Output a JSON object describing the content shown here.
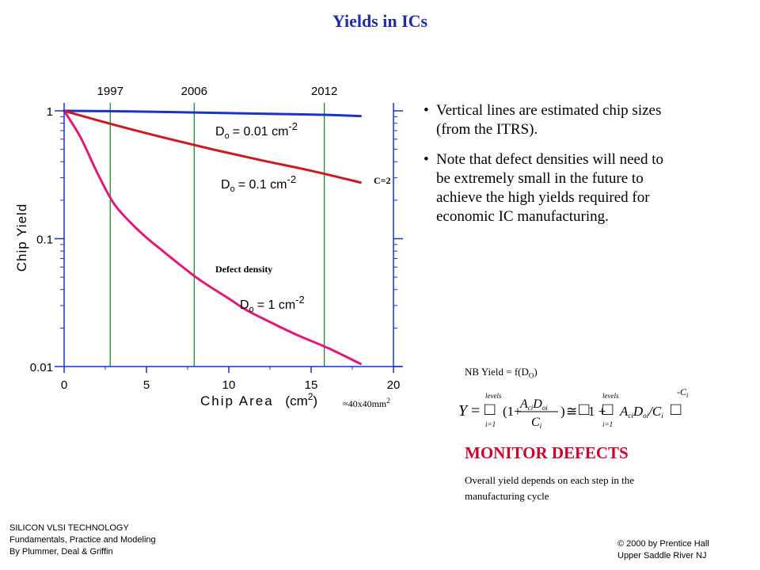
{
  "title": "Yields in ICs",
  "chart_data": {
    "type": "line",
    "ylabel": "Chip  Yield",
    "xlabel_main": "Chip Area",
    "xlabel_unit": "(cm",
    "xlabel_exp": "2",
    "xlabel_close": ")",
    "xlim": [
      0,
      20
    ],
    "ylim": [
      0.01,
      1
    ],
    "yscale": "log",
    "xticks": [
      0,
      5,
      10,
      15,
      20
    ],
    "yticks": [
      {
        "value": 1,
        "label": "1"
      },
      {
        "value": 0.1,
        "label": "0.1"
      },
      {
        "value": 0.01,
        "label": "0.01"
      }
    ],
    "vlines": [
      {
        "x": 2.8,
        "label": "1997"
      },
      {
        "x": 7.9,
        "label": "2006"
      },
      {
        "x": 15.8,
        "label": "2012"
      }
    ],
    "series": [
      {
        "color": "#1a33c8",
        "points": [
          [
            0,
            1
          ],
          [
            4,
            0.99
          ],
          [
            8,
            0.97
          ],
          [
            12,
            0.95
          ],
          [
            16,
            0.93
          ],
          [
            18,
            0.91
          ]
        ]
      },
      {
        "color": "#cc1a22",
        "points": [
          [
            0,
            1
          ],
          [
            3,
            0.78
          ],
          [
            6,
            0.62
          ],
          [
            9,
            0.5
          ],
          [
            12,
            0.41
          ],
          [
            15,
            0.34
          ],
          [
            18,
            0.275
          ]
        ]
      },
      {
        "color": "#e01a78",
        "points": [
          [
            0,
            1
          ],
          [
            1,
            0.62
          ],
          [
            2,
            0.33
          ],
          [
            3,
            0.19
          ],
          [
            4,
            0.135
          ],
          [
            5,
            0.102
          ],
          [
            6,
            0.08
          ],
          [
            7,
            0.063
          ],
          [
            8,
            0.05
          ],
          [
            9,
            0.041
          ],
          [
            10,
            0.034
          ],
          [
            11,
            0.028
          ],
          [
            12,
            0.024
          ],
          [
            14,
            0.018
          ],
          [
            16,
            0.014
          ],
          [
            18,
            0.0105
          ]
        ]
      }
    ],
    "annotations": {
      "d1": {
        "main": "D",
        "sub": "o",
        "rest": "= 0.01 cm",
        "sup": "-2"
      },
      "d2": {
        "main": "D",
        "sub": "o",
        "rest": "= 0.1 cm",
        "sup": "-2"
      },
      "d3": {
        "main": "D",
        "sub": "o",
        "rest": "= 1 cm",
        "sup": "-2"
      },
      "c": "C=2",
      "defect": "Defect density",
      "size": "≈40x40mm",
      "size_sup": "2"
    }
  },
  "bullets": [
    "Vertical lines are estimated chip sizes (from the ITRS).",
    "Note that defect densities will need to be extremely small in the future to achieve the high yields required for economic IC manufacturing."
  ],
  "bullet_symbol": "•",
  "nb": {
    "text": "NB Yield = f(D",
    "sub": "O",
    "close": ")"
  },
  "monitor": "MONITOR DEFECTS",
  "note": "Overall yield depends on each step in the manufacturing cycle",
  "footer_left": [
    "SILICON  VLSI TECHNOLOGY",
    "Fundamentals, Practice and Modeling",
    "By Plummer,  Deal & Griffin"
  ],
  "footer_right": [
    "© 2000 by Prentice Hall",
    "Upper Saddle River NJ"
  ],
  "equation": {
    "lhs": "Y",
    "eq": "=",
    "top": "levels",
    "bottom": "i=1",
    "open": "(1+",
    "num": "A",
    "num_sub1": "ci",
    "num_d": "D",
    "num_sub2": "oi",
    "den": "C",
    "den_sub": "i",
    "close": ")",
    "approx": "≅",
    "one_plus": "1 +",
    "a": "A",
    "a_sub": "ci",
    "d": "D",
    "d_sub": "oi",
    "slash": "/",
    "c": "C",
    "c_sub": "i",
    "exp": "-C",
    "exp_sub": "i",
    "box": "□"
  }
}
